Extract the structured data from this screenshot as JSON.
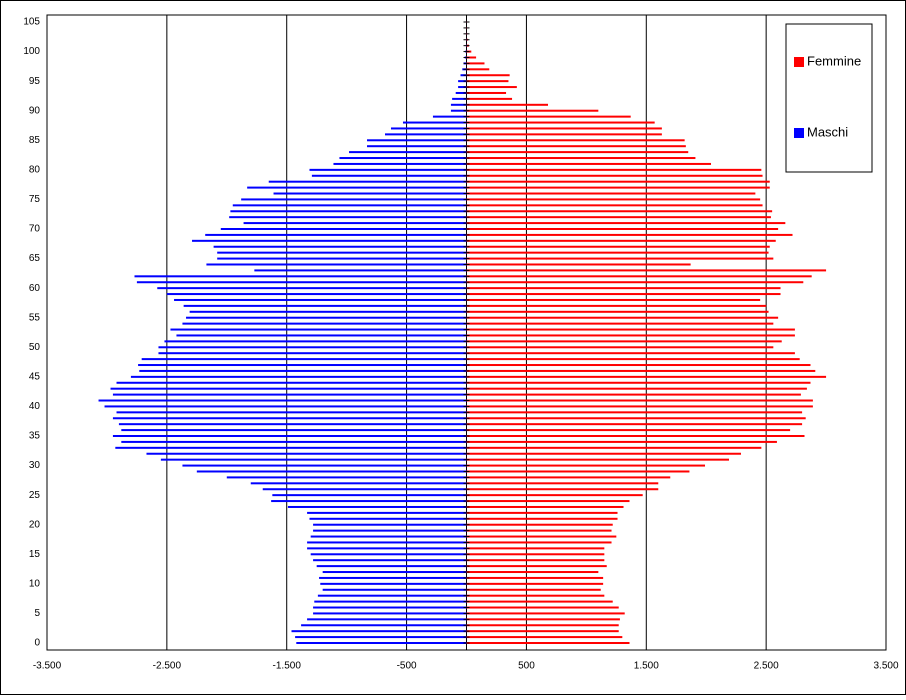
{
  "chart_data": {
    "type": "pyramid",
    "categories": [
      0,
      null,
      null,
      null,
      null,
      5,
      null,
      null,
      null,
      null,
      10,
      null,
      null,
      null,
      null,
      15,
      null,
      null,
      null,
      null,
      20,
      null,
      null,
      null,
      null,
      25,
      null,
      null,
      null,
      null,
      30,
      null,
      null,
      null,
      null,
      35,
      null,
      null,
      null,
      null,
      40,
      null,
      null,
      null,
      null,
      45,
      null,
      null,
      null,
      null,
      50,
      null,
      null,
      null,
      null,
      55,
      null,
      null,
      null,
      null,
      60,
      null,
      null,
      null,
      null,
      65,
      null,
      null,
      null,
      null,
      70,
      null,
      null,
      null,
      null,
      75,
      null,
      null,
      null,
      null,
      80,
      null,
      null,
      null,
      null,
      85,
      null,
      null,
      null,
      null,
      90,
      null,
      null,
      null,
      null,
      95,
      null,
      null,
      null,
      null,
      100,
      null,
      null,
      null,
      null,
      105
    ],
    "series": [
      {
        "name": "Femmine",
        "color": "#ff0000",
        "values": [
          1360,
          1300,
          1270,
          1270,
          1280,
          1320,
          1270,
          1220,
          1150,
          1120,
          1140,
          1140,
          1100,
          1170,
          1150,
          1150,
          1150,
          1210,
          1250,
          1210,
          1220,
          1260,
          1260,
          1310,
          1360,
          1470,
          1600,
          1600,
          1700,
          1860,
          1990,
          2190,
          2290,
          2460,
          2590,
          2820,
          2700,
          2800,
          2830,
          2800,
          2890,
          2890,
          2790,
          2840,
          2870,
          3000,
          2910,
          2870,
          2780,
          2740,
          2560,
          2630,
          2740,
          2740,
          2560,
          2600,
          2520,
          2500,
          2450,
          2620,
          2620,
          2810,
          2880,
          3000,
          1870,
          2560,
          2520,
          2530,
          2580,
          2720,
          2600,
          2660,
          2540,
          2550,
          2470,
          2450,
          2410,
          2530,
          2530,
          2470,
          2460,
          2040,
          1910,
          1850,
          1830,
          1820,
          1630,
          1630,
          1570,
          1370,
          1100,
          680,
          380,
          330,
          420,
          350,
          360,
          190,
          150,
          80,
          40,
          20,
          10,
          5,
          3,
          2
        ]
      },
      {
        "name": "Maschi",
        "color": "#0000ff",
        "values": [
          -1420,
          -1430,
          -1460,
          -1380,
          -1330,
          -1280,
          -1280,
          -1270,
          -1240,
          -1200,
          -1220,
          -1230,
          -1200,
          -1250,
          -1280,
          -1300,
          -1330,
          -1330,
          -1300,
          -1280,
          -1280,
          -1310,
          -1330,
          -1490,
          -1630,
          -1620,
          -1700,
          -1800,
          -2000,
          -2250,
          -2370,
          -2550,
          -2670,
          -2930,
          -2880,
          -2950,
          -2880,
          -2900,
          -2950,
          -2920,
          -3020,
          -3070,
          -2950,
          -2970,
          -2920,
          -2800,
          -2730,
          -2740,
          -2710,
          -2570,
          -2570,
          -2520,
          -2420,
          -2470,
          -2370,
          -2340,
          -2310,
          -2360,
          -2440,
          -2500,
          -2580,
          -2750,
          -2770,
          -1770,
          -2170,
          -2080,
          -2080,
          -2110,
          -2290,
          -2180,
          -2050,
          -1860,
          -1980,
          -1970,
          -1950,
          -1880,
          -1610,
          -1830,
          -1650,
          -1290,
          -1310,
          -1110,
          -1060,
          -980,
          -830,
          -830,
          -680,
          -630,
          -530,
          -280,
          -130,
          -130,
          -120,
          -90,
          -70,
          -70,
          -50,
          -35,
          -25,
          -15,
          -10,
          -5,
          -3,
          -2,
          -1,
          -1
        ]
      }
    ],
    "xlim": [
      -3500,
      3500
    ],
    "xticks": [
      {
        "value": -3500,
        "label": "-3.500"
      },
      {
        "value": -2500,
        "label": "-2.500"
      },
      {
        "value": -1500,
        "label": "-1.500"
      },
      -500,
      500,
      {
        "value": 1500,
        "label": "1.500"
      },
      {
        "value": 2500,
        "label": "2.500"
      },
      {
        "value": 3500,
        "label": "3.500"
      }
    ],
    "grid": true,
    "legend": "upper right"
  }
}
